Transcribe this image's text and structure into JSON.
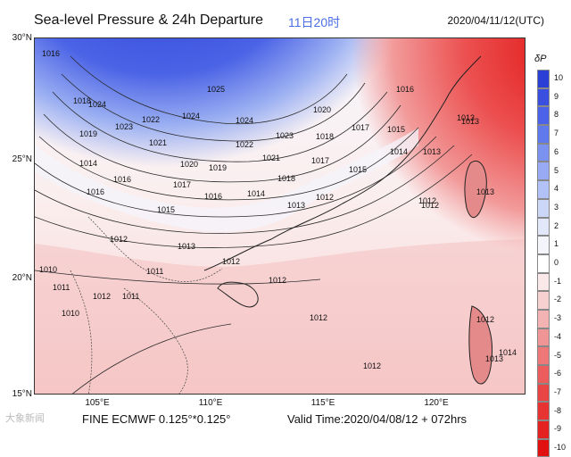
{
  "title": "Sea-level Pressure & 24h Departure",
  "title_time": "11日20时",
  "init_time": "2020/04/11/12(UTC)",
  "colorbar": {
    "label": "δP",
    "levels": [
      "10",
      "9",
      "8",
      "7",
      "6",
      "5",
      "4",
      "3",
      "2",
      "1",
      "0",
      "-1",
      "-2",
      "-3",
      "-4",
      "-5",
      "-6",
      "-7",
      "-8",
      "-9",
      "-10"
    ],
    "colors": [
      "#2b3fd6",
      "#3a4fe0",
      "#4c62e8",
      "#6079ec",
      "#7c92f0",
      "#98aaf3",
      "#b3c2f6",
      "#ccd7f8",
      "#e2e8fa",
      "#f4f5fb",
      "#ffffff",
      "#fbe9e9",
      "#f7d0d0",
      "#f3b3b3",
      "#f09595",
      "#ee7777",
      "#ec5c5c",
      "#ea4545",
      "#e83333",
      "#e52222",
      "#e21111"
    ]
  },
  "axes": {
    "lat_labels": [
      "30°N",
      "25°N",
      "20°N",
      "15°N"
    ],
    "lon_labels": [
      "105°E",
      "110°E",
      "115°E",
      "120°E"
    ]
  },
  "isobar_labels": [
    "1016",
    "1018",
    "1019",
    "1024",
    "1025",
    "1023",
    "1022",
    "1024",
    "1024",
    "1023",
    "1021",
    "1022",
    "1020",
    "1019",
    "1021",
    "1020",
    "1017",
    "1016",
    "1018",
    "1017",
    "1014",
    "1015",
    "1016",
    "1016",
    "1015",
    "1014",
    "1013",
    "1013",
    "1012",
    "1012",
    "1014",
    "1013",
    "1012",
    "1011",
    "1010",
    "1011",
    "1012",
    "1011",
    "1012",
    "1010",
    "1012",
    "1012",
    "1012",
    "1012",
    "1013",
    "1013",
    "1013",
    "1012",
    "1013",
    "1014",
    "1016",
    "1017",
    "1015",
    "1018"
  ],
  "footer": {
    "model": "FINE ECMWF 0.125°*0.125°",
    "valid": "Valid Time:2020/04/08/12 + 072hrs"
  },
  "watermark": "大象新闻"
}
